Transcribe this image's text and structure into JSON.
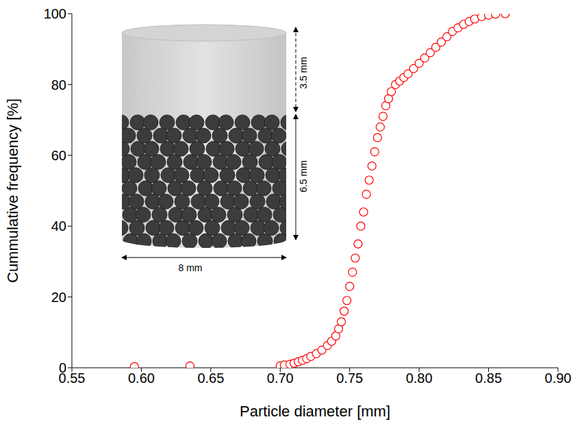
{
  "chart_data": {
    "type": "scatter",
    "x_label": "Particle diameter [mm]",
    "y_label": "Cummulative frequency [%]",
    "annotations": [
      "3.5 mm",
      "6.5 mm",
      "8 mm"
    ],
    "xlim": [
      0.55,
      0.9
    ],
    "xticks": [
      0.55,
      {
        "value": 0.6,
        "label": "0.60"
      },
      0.65,
      {
        "value": 0.7,
        "label": "0.70"
      },
      0.75,
      {
        "value": 0.8,
        "label": "0.80"
      },
      0.85,
      {
        "value": 0.9,
        "label": "0.90"
      }
    ],
    "ylim": [
      0,
      100
    ],
    "yticks": [
      0,
      20,
      40,
      60,
      80,
      100
    ],
    "grid": false,
    "series": [
      {
        "color": "#ff0000",
        "marker": "open_circle",
        "x": [
          0.595,
          0.635,
          0.7,
          0.703,
          0.707,
          0.71,
          0.713,
          0.716,
          0.719,
          0.722,
          0.726,
          0.73,
          0.734,
          0.737,
          0.74,
          0.742,
          0.744,
          0.746,
          0.748,
          0.75,
          0.752,
          0.754,
          0.756,
          0.758,
          0.76,
          0.762,
          0.764,
          0.766,
          0.768,
          0.77,
          0.772,
          0.774,
          0.776,
          0.778,
          0.78,
          0.783,
          0.786,
          0.789,
          0.792,
          0.796,
          0.8,
          0.804,
          0.808,
          0.812,
          0.816,
          0.82,
          0.824,
          0.828,
          0.832,
          0.836,
          0.84,
          0.845,
          0.85,
          0.855,
          0.862
        ],
        "values": [
          0.3,
          0.5,
          0.5,
          0.8,
          1.0,
          1.3,
          1.7,
          2.1,
          2.6,
          3.2,
          4.0,
          5.0,
          6.3,
          7.5,
          9.0,
          11,
          13,
          16,
          19,
          23,
          27,
          31,
          35,
          40,
          44,
          49,
          53,
          57,
          61,
          65,
          68,
          71,
          74,
          76,
          78,
          80,
          81,
          82,
          83,
          84.5,
          86,
          87.5,
          89,
          90.5,
          92,
          93.5,
          95,
          96,
          97,
          97.8,
          98.5,
          99.2,
          99.6,
          99.9,
          100
        ]
      }
    ]
  }
}
